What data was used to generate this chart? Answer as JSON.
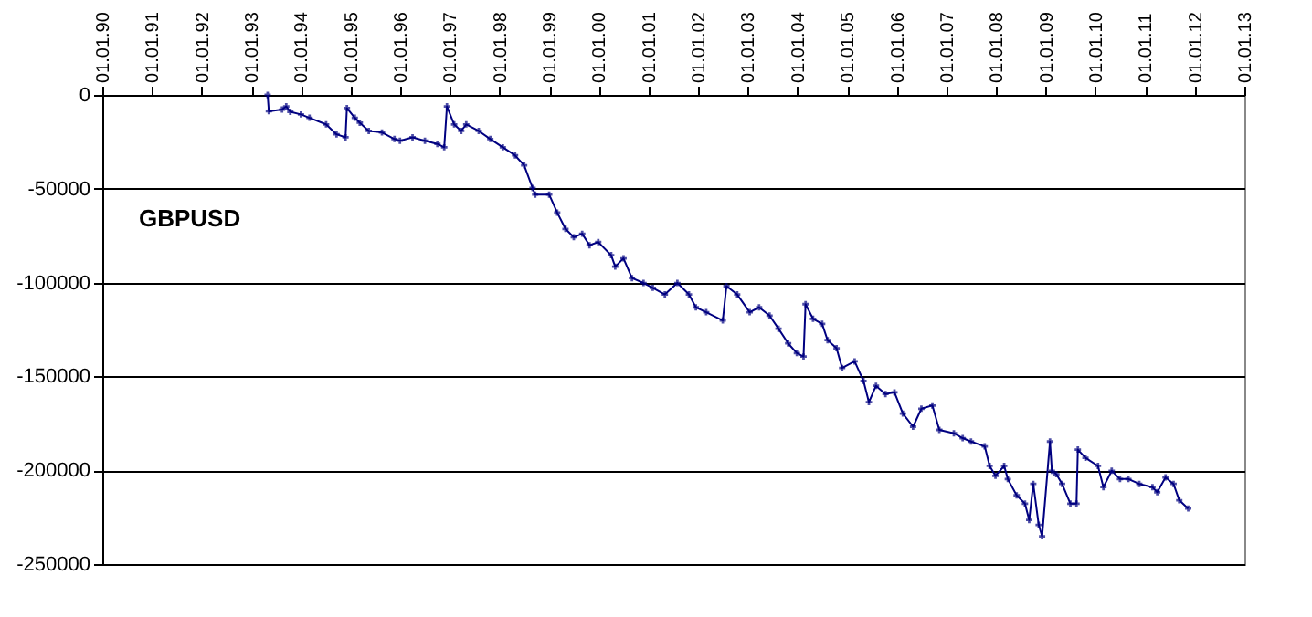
{
  "chart_data": {
    "type": "line",
    "title": "GBPUSD",
    "x": [
      "1993-05-01",
      "1993-05-10",
      "1993-08-15",
      "1993-09-15",
      "1993-10-15",
      "1994-01-01",
      "1994-03-05",
      "1994-07-05",
      "1994-09-20",
      "1994-11-25",
      "1994-12-05",
      "1995-02-01",
      "1995-03-10",
      "1995-05-15",
      "1995-08-20",
      "1995-11-20",
      "1995-12-30",
      "1996-04-01",
      "1996-07-01",
      "1996-10-01",
      "1996-11-20",
      "1996-12-10",
      "1997-02-01",
      "1997-03-25",
      "1997-05-01",
      "1997-08-01",
      "1997-10-25",
      "1998-01-25",
      "1998-04-25",
      "1998-07-01",
      "1998-09-01",
      "1998-09-20",
      "1999-01-01",
      "1999-03-01",
      "1999-05-01",
      "1999-07-01",
      "1999-09-01",
      "1999-10-25",
      "1999-12-28",
      "2000-04-01",
      "2000-05-01",
      "2000-07-01",
      "2000-09-01",
      "2000-11-25",
      "2001-02-01",
      "2001-05-01",
      "2001-08-01",
      "2001-10-25",
      "2001-12-15",
      "2002-03-01",
      "2002-07-01",
      "2002-07-28",
      "2002-10-15",
      "2003-01-15",
      "2003-03-25",
      "2003-06-10",
      "2003-08-15",
      "2003-10-25",
      "2003-12-28",
      "2004-02-15",
      "2004-03-01",
      "2004-04-25",
      "2004-07-01",
      "2004-08-10",
      "2004-10-15",
      "2004-11-25",
      "2005-02-25",
      "2005-05-01",
      "2005-06-10",
      "2005-08-01",
      "2005-10-10",
      "2005-12-15",
      "2006-02-15",
      "2006-05-01",
      "2006-07-01",
      "2006-09-20",
      "2006-11-10",
      "2007-02-25",
      "2007-05-01",
      "2007-07-01",
      "2007-10-10",
      "2007-11-15",
      "2007-12-28",
      "2008-03-01",
      "2008-03-28",
      "2008-06-01",
      "2008-08-01",
      "2008-09-01",
      "2008-10-01",
      "2008-11-10",
      "2008-12-05",
      "2009-02-01",
      "2009-02-15",
      "2009-03-20",
      "2009-05-01",
      "2009-07-01",
      "2009-08-15",
      "2009-08-25",
      "2009-10-20",
      "2010-01-20",
      "2010-03-01",
      "2010-05-01",
      "2010-07-01",
      "2010-09-01",
      "2010-11-20",
      "2011-02-25",
      "2011-04-01",
      "2011-06-01",
      "2011-07-30",
      "2011-09-10",
      "2011-11-15"
    ],
    "series": [
      {
        "color": "#000080",
        "values": [
          0,
          -8700,
          -7800,
          -6100,
          -9000,
          -10400,
          -12200,
          -15700,
          -21000,
          -22600,
          -7000,
          -12200,
          -14800,
          -19200,
          -20000,
          -23500,
          -24400,
          -22600,
          -24400,
          -26100,
          -27900,
          -6100,
          -15700,
          -19200,
          -15700,
          -19200,
          -23500,
          -27900,
          -32200,
          -37500,
          -49600,
          -53100,
          -53100,
          -62700,
          -71400,
          -75800,
          -74000,
          -80100,
          -78400,
          -85400,
          -91500,
          -87100,
          -97600,
          -100200,
          -102800,
          -106300,
          -100200,
          -106300,
          -113200,
          -115800,
          -120200,
          -101900,
          -106300,
          -115800,
          -113200,
          -117600,
          -124600,
          -132400,
          -137600,
          -139400,
          -111500,
          -119300,
          -122000,
          -130700,
          -135000,
          -145500,
          -142000,
          -152400,
          -163700,
          -155000,
          -159400,
          -158500,
          -169800,
          -176800,
          -167200,
          -165500,
          -178500,
          -180300,
          -182900,
          -184700,
          -187300,
          -197700,
          -203000,
          -197700,
          -204700,
          -213400,
          -217800,
          -226500,
          -207300,
          -229100,
          -235200,
          -184700,
          -200300,
          -202100,
          -207300,
          -217800,
          -217800,
          -189000,
          -193400,
          -197700,
          -209000,
          -200300,
          -204700,
          -204700,
          -207300,
          -209000,
          -211700,
          -203800,
          -207300,
          -216000,
          -220400
        ]
      }
    ],
    "xlim": [
      "1990-01-01",
      "2013-01-01"
    ],
    "xticks": [
      {
        "value": "1990-01-01",
        "label": "01.01.90"
      },
      {
        "value": "1991-01-01",
        "label": "01.01.91"
      },
      {
        "value": "1992-01-01",
        "label": "01.01.92"
      },
      {
        "value": "1993-01-01",
        "label": "01.01.93"
      },
      {
        "value": "1994-01-01",
        "label": "01.01.94"
      },
      {
        "value": "1995-01-01",
        "label": "01.01.95"
      },
      {
        "value": "1996-01-01",
        "label": "01.01.96"
      },
      {
        "value": "1997-01-01",
        "label": "01.01.97"
      },
      {
        "value": "1998-01-01",
        "label": "01.01.98"
      },
      {
        "value": "1999-01-01",
        "label": "01.01.99"
      },
      {
        "value": "2000-01-01",
        "label": "01.01.00"
      },
      {
        "value": "2001-01-01",
        "label": "01.01.01"
      },
      {
        "value": "2002-01-01",
        "label": "01.01.02"
      },
      {
        "value": "2003-01-01",
        "label": "01.01.03"
      },
      {
        "value": "2004-01-01",
        "label": "01.01.04"
      },
      {
        "value": "2005-01-01",
        "label": "01.01.05"
      },
      {
        "value": "2006-01-01",
        "label": "01.01.06"
      },
      {
        "value": "2007-01-01",
        "label": "01.01.07"
      },
      {
        "value": "2008-01-01",
        "label": "01.01.08"
      },
      {
        "value": "2009-01-01",
        "label": "01.01.09"
      },
      {
        "value": "2010-01-01",
        "label": "01.01.10"
      },
      {
        "value": "2011-01-01",
        "label": "01.01.11"
      },
      {
        "value": "2012-01-01",
        "label": "01.01.12"
      },
      {
        "value": "2013-01-01",
        "label": "01.01.13"
      }
    ],
    "ylim": [
      -250000,
      0
    ],
    "yticks": [
      -250000,
      -200000,
      -150000,
      -100000,
      -50000,
      0
    ],
    "grid": "y",
    "marker": "cross",
    "line_style": "solid"
  }
}
